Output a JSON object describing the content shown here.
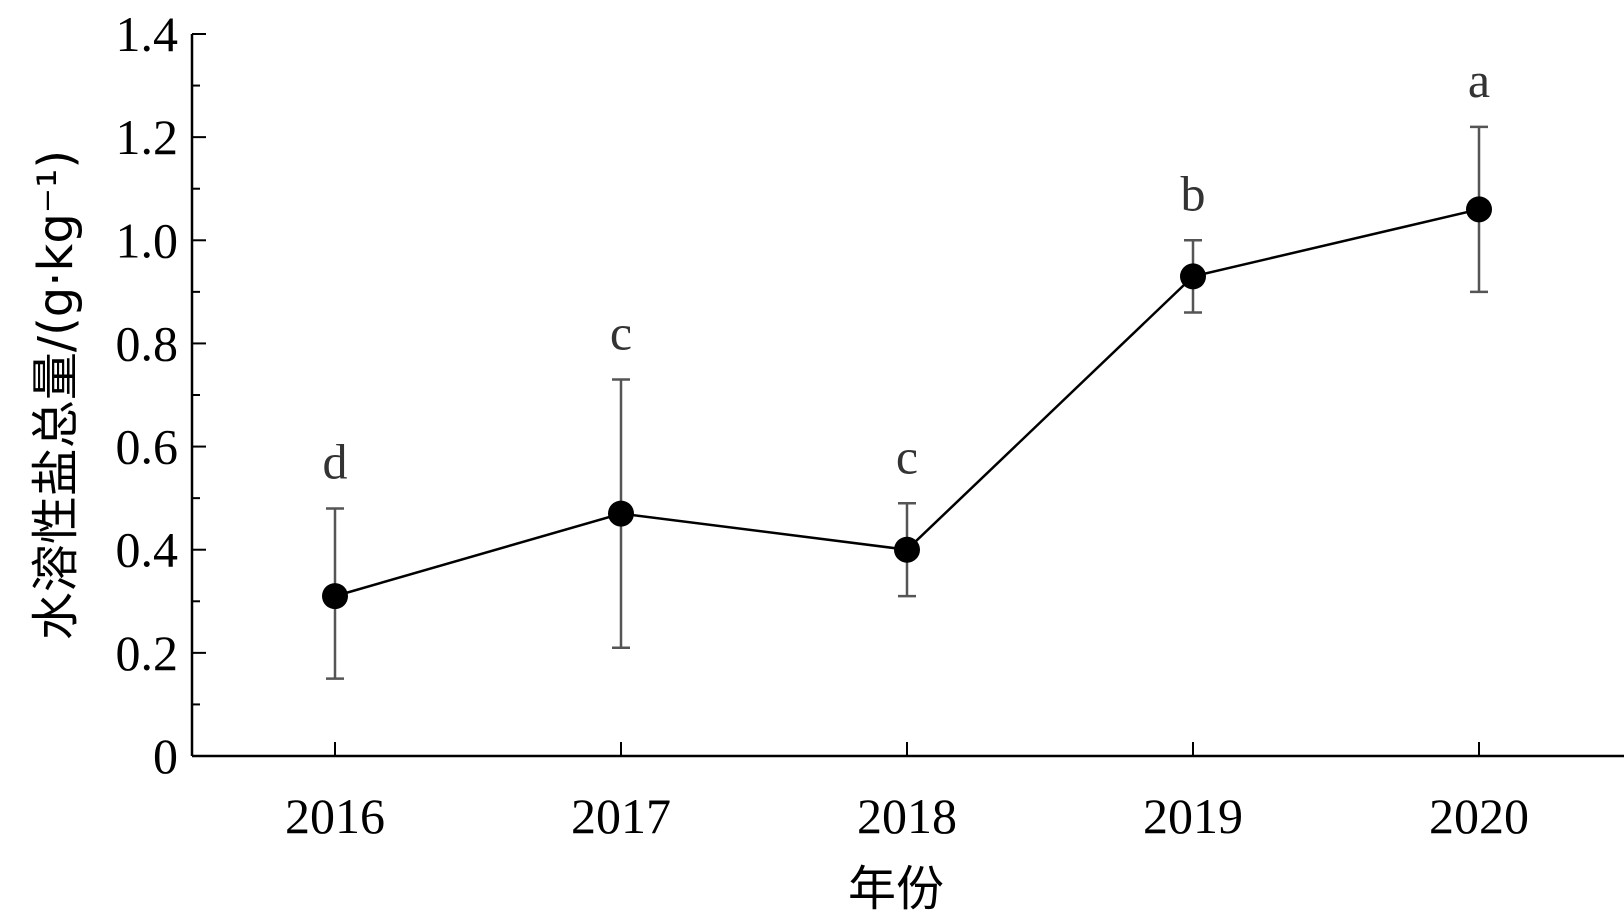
{
  "chart_data": {
    "type": "line",
    "categories": [
      "2016",
      "2017",
      "2018",
      "2019",
      "2020"
    ],
    "series": [
      {
        "values": [
          0.31,
          0.47,
          0.4,
          0.93,
          1.06
        ],
        "error_low": [
          0.15,
          0.21,
          0.31,
          0.86,
          0.9
        ],
        "error_high": [
          0.48,
          0.73,
          0.49,
          1.0,
          1.22
        ],
        "significance": [
          "d",
          "c",
          "c",
          "b",
          "a"
        ],
        "color": "#000000",
        "marker": "filled-circle"
      }
    ],
    "xlabel": "年份",
    "ylabel": "水溶性盐总量/(g·kg⁻¹)",
    "ylim": [
      0,
      1.4
    ],
    "yticks": [
      "0",
      "0.2",
      "0.4",
      "0.6",
      "0.8",
      "1.0",
      "1.2",
      "1.4"
    ],
    "errorbar_color": "#555555",
    "grid": false
  }
}
